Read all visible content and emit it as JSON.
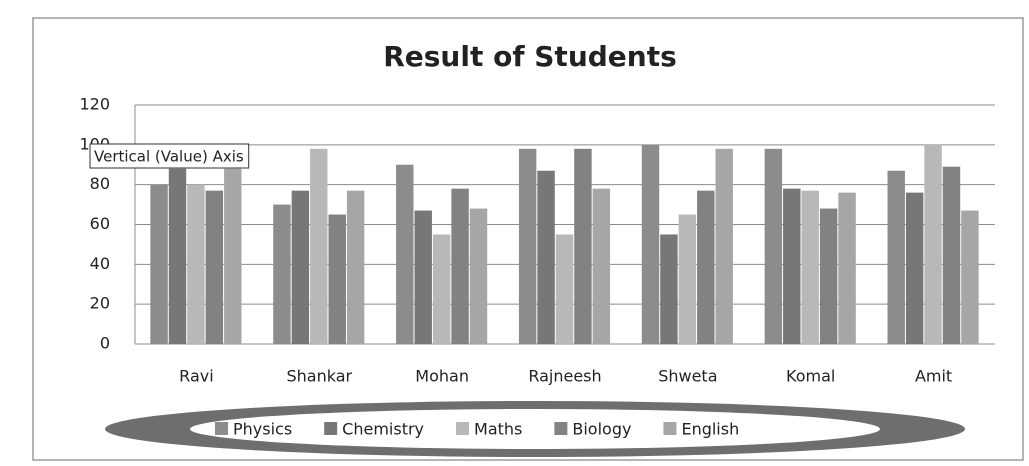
{
  "chart_data": {
    "type": "bar",
    "title": "Result of Students",
    "categories": [
      "Ravi",
      "Shankar",
      "Mohan",
      "Rajneesh",
      "Shweta",
      "Komal",
      "Amit"
    ],
    "series": [
      {
        "name": "Physics",
        "color": "#8c8c8c",
        "values": [
          80,
          70,
          90,
          98,
          100,
          98,
          87
        ]
      },
      {
        "name": "Chemistry",
        "color": "#777777",
        "values": [
          88,
          77,
          67,
          87,
          55,
          78,
          76
        ]
      },
      {
        "name": "Maths",
        "color": "#b8b8b8",
        "values": [
          80,
          98,
          55,
          55,
          65,
          77,
          100
        ]
      },
      {
        "name": "Biology",
        "color": "#828282",
        "values": [
          77,
          65,
          78,
          98,
          77,
          68,
          89
        ]
      },
      {
        "name": "English",
        "color": "#a6a6a6",
        "values": [
          88,
          77,
          68,
          78,
          98,
          76,
          67
        ]
      }
    ],
    "ylim": [
      0,
      120
    ],
    "yticks": [
      0,
      20,
      40,
      60,
      80,
      100,
      120
    ],
    "grid": true,
    "legend": "bottom",
    "annotations": [
      "Vertical (Value) Axis"
    ]
  }
}
